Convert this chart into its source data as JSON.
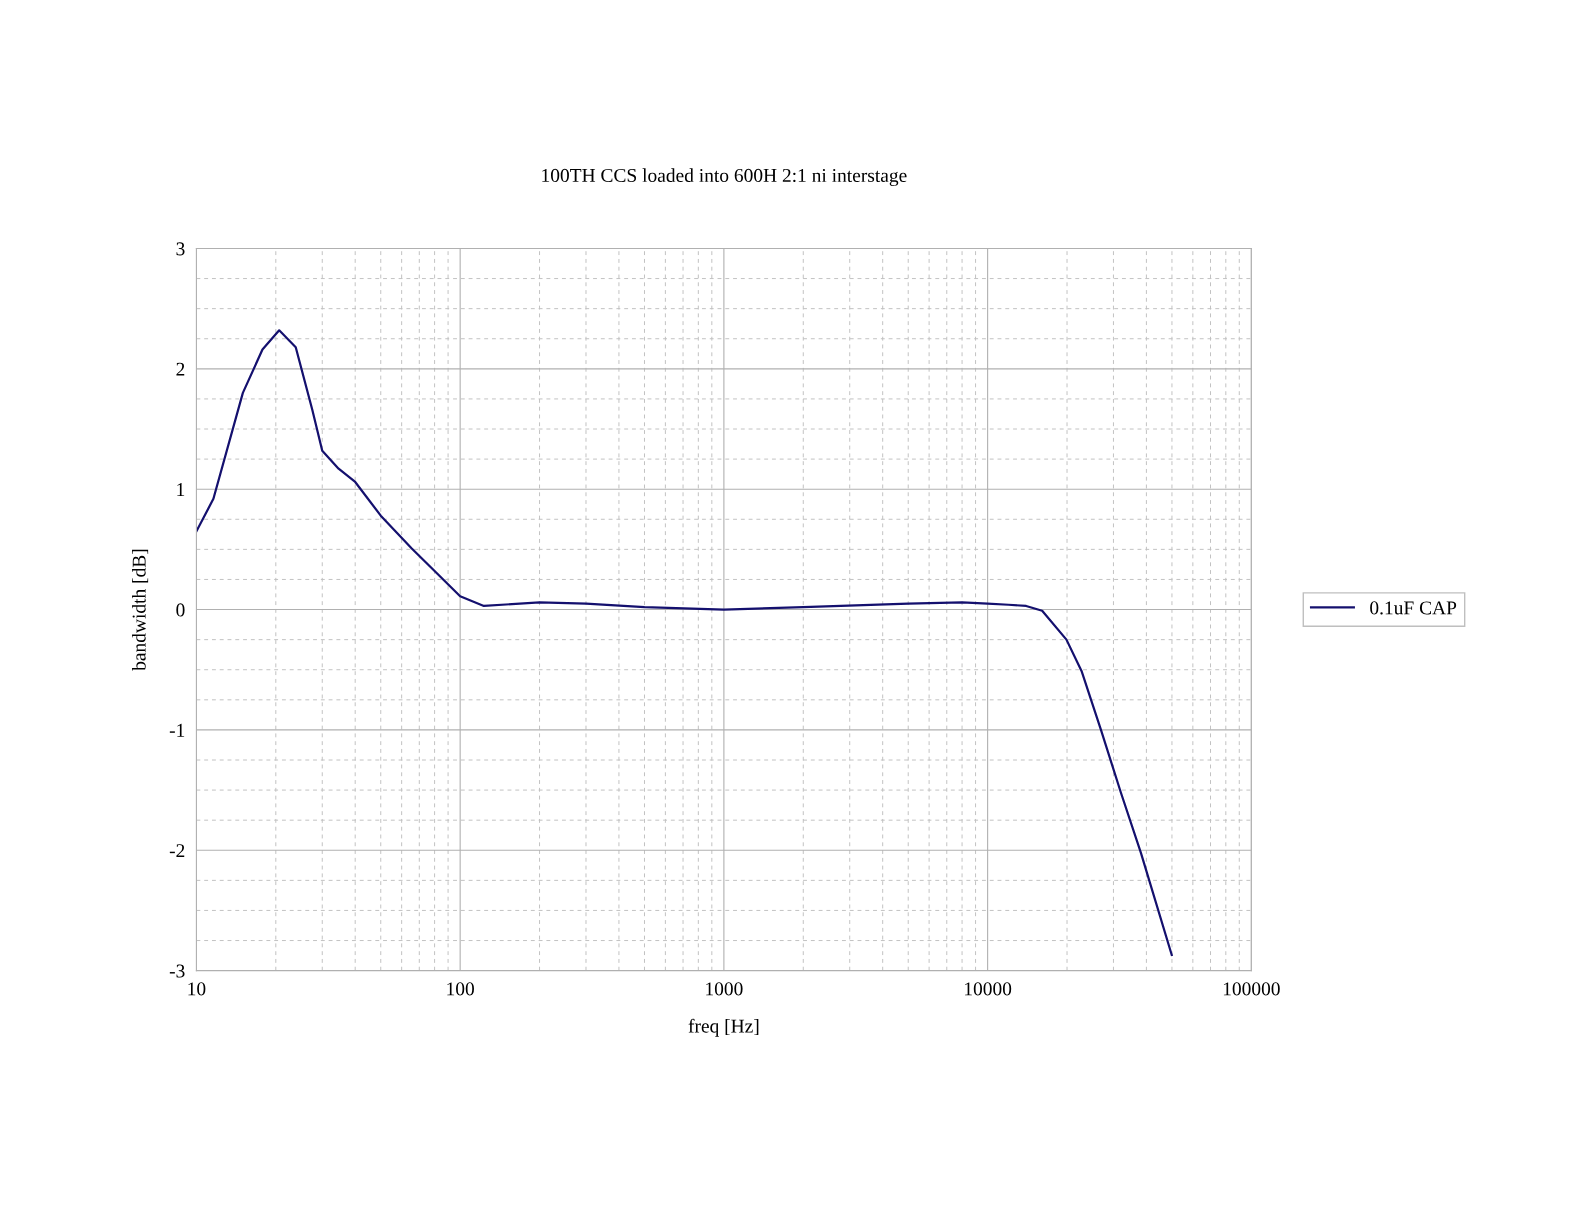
{
  "chart_data": {
    "type": "line",
    "title": "100TH CCS loaded into 600H 2:1 ni interstage",
    "xlabel": "freq [Hz]",
    "ylabel": "bandwidth [dB]",
    "log": "x",
    "grid": true,
    "legend": "right",
    "marker": "none",
    "line_style": "solid",
    "xlim": [
      10,
      100000
    ],
    "xticks": [
      10,
      100,
      1000,
      10000,
      100000
    ],
    "ylim": [
      -3,
      3
    ],
    "yticks": [
      -3,
      -2,
      -1,
      0,
      1,
      2,
      3
    ],
    "series": [
      {
        "name": "0.1uF CAP",
        "color": "#14106e",
        "x": [
          10,
          11.6,
          15,
          17.8,
          20.6,
          23.8,
          27.5,
          30,
          34.6,
          40,
          50,
          65.4,
          80,
          100,
          123,
          200,
          300,
          500,
          1000,
          2000,
          5000,
          8000,
          10000,
          12000,
          14000,
          16100,
          19900,
          22700,
          26900,
          32000,
          38100,
          49900
        ],
        "values": [
          0.65,
          0.92,
          1.8,
          2.16,
          2.32,
          2.18,
          1.66,
          1.32,
          1.17,
          1.06,
          0.78,
          0.51,
          0.32,
          0.11,
          0.03,
          0.06,
          0.05,
          0.02,
          0.0,
          0.02,
          0.05,
          0.06,
          0.05,
          0.04,
          0.03,
          -0.01,
          -0.25,
          -0.51,
          -1.0,
          -1.52,
          -2.02,
          -2.87
        ]
      }
    ]
  }
}
